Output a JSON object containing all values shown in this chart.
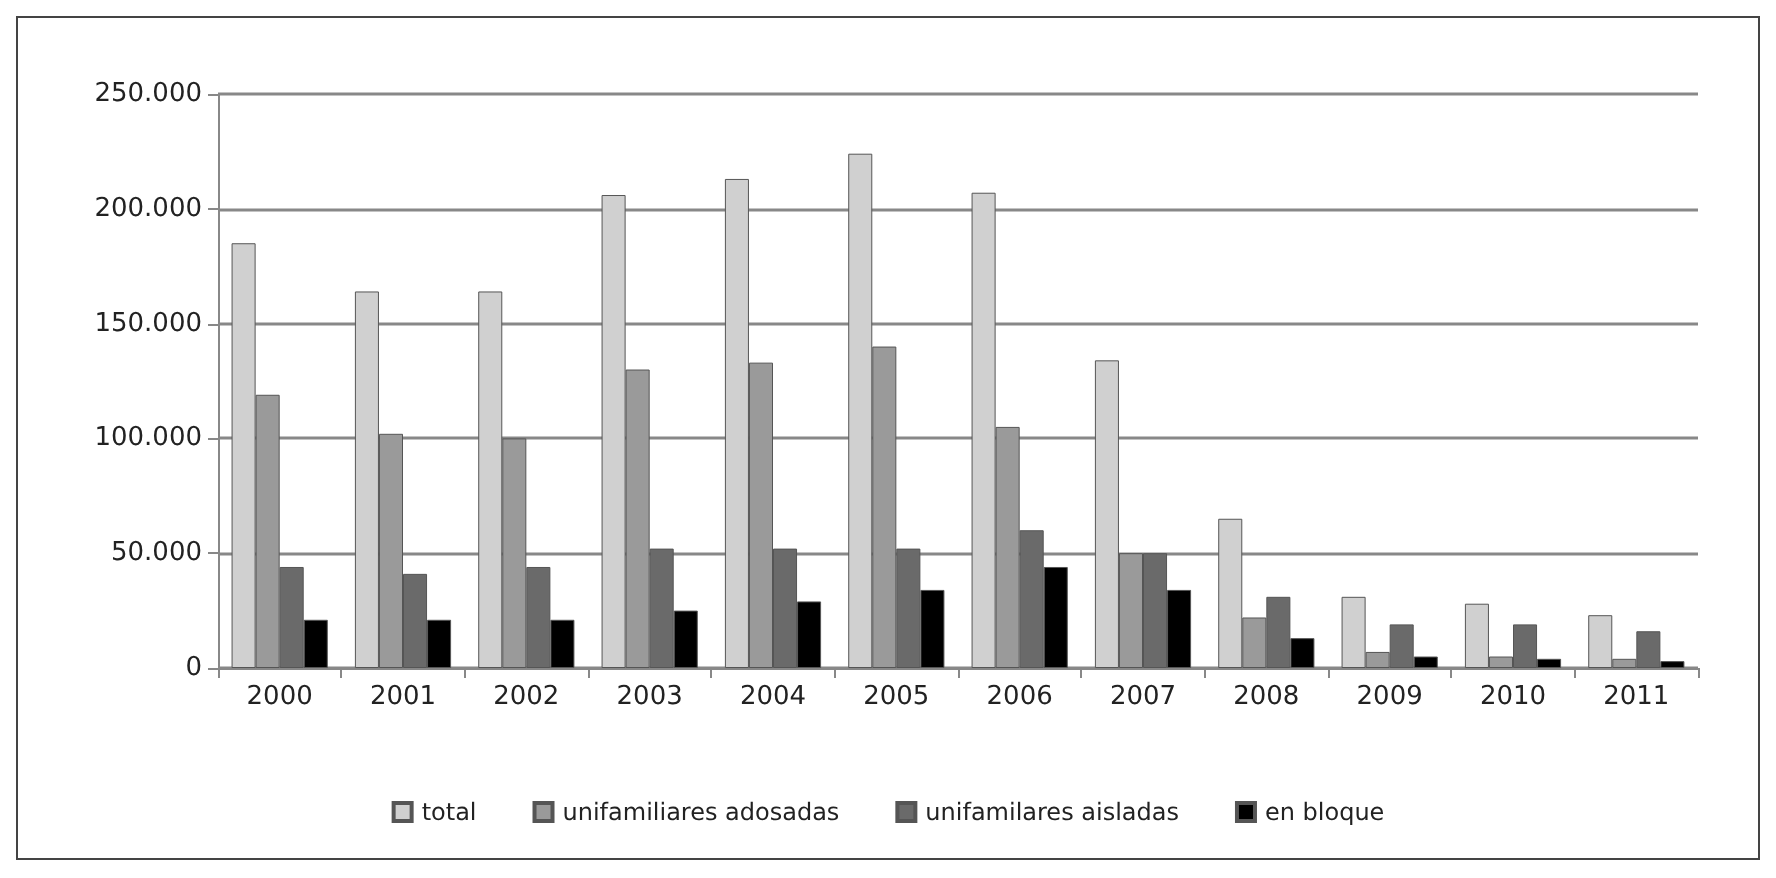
{
  "chart_data": {
    "type": "bar",
    "categories": [
      "2000",
      "2001",
      "2002",
      "2003",
      "2004",
      "2005",
      "2006",
      "2007",
      "2008",
      "2009",
      "2010",
      "2011"
    ],
    "series": [
      {
        "name": "total",
        "color": "#d0d0d0",
        "values": [
          185000,
          164000,
          164000,
          206000,
          213000,
          224000,
          207000,
          134000,
          65000,
          31000,
          28000,
          23000
        ]
      },
      {
        "name": "unifamiliares adosadas",
        "color": "#9a9a9a",
        "values": [
          119000,
          102000,
          100000,
          130000,
          133000,
          140000,
          105000,
          50000,
          22000,
          7000,
          5000,
          4000
        ]
      },
      {
        "name": "unifamilares aisladas",
        "color": "#6a6a6a",
        "values": [
          44000,
          41000,
          44000,
          52000,
          52000,
          52000,
          60000,
          50000,
          31000,
          19000,
          19000,
          16000
        ]
      },
      {
        "name": "en bloque",
        "color": "#000000",
        "values": [
          21000,
          21000,
          21000,
          25000,
          29000,
          34000,
          44000,
          34000,
          13000,
          5000,
          4000,
          3000
        ]
      }
    ],
    "ylim": [
      0,
      250000
    ],
    "yticks": [
      {
        "value": 0,
        "label": "0"
      },
      {
        "value": 50000,
        "label": "50.000"
      },
      {
        "value": 100000,
        "label": "100.000"
      },
      {
        "value": 150000,
        "label": "150.000"
      },
      {
        "value": 200000,
        "label": "200.000"
      },
      {
        "value": 250000,
        "label": "250.000"
      }
    ],
    "grid": "y",
    "legend": "bottom"
  }
}
